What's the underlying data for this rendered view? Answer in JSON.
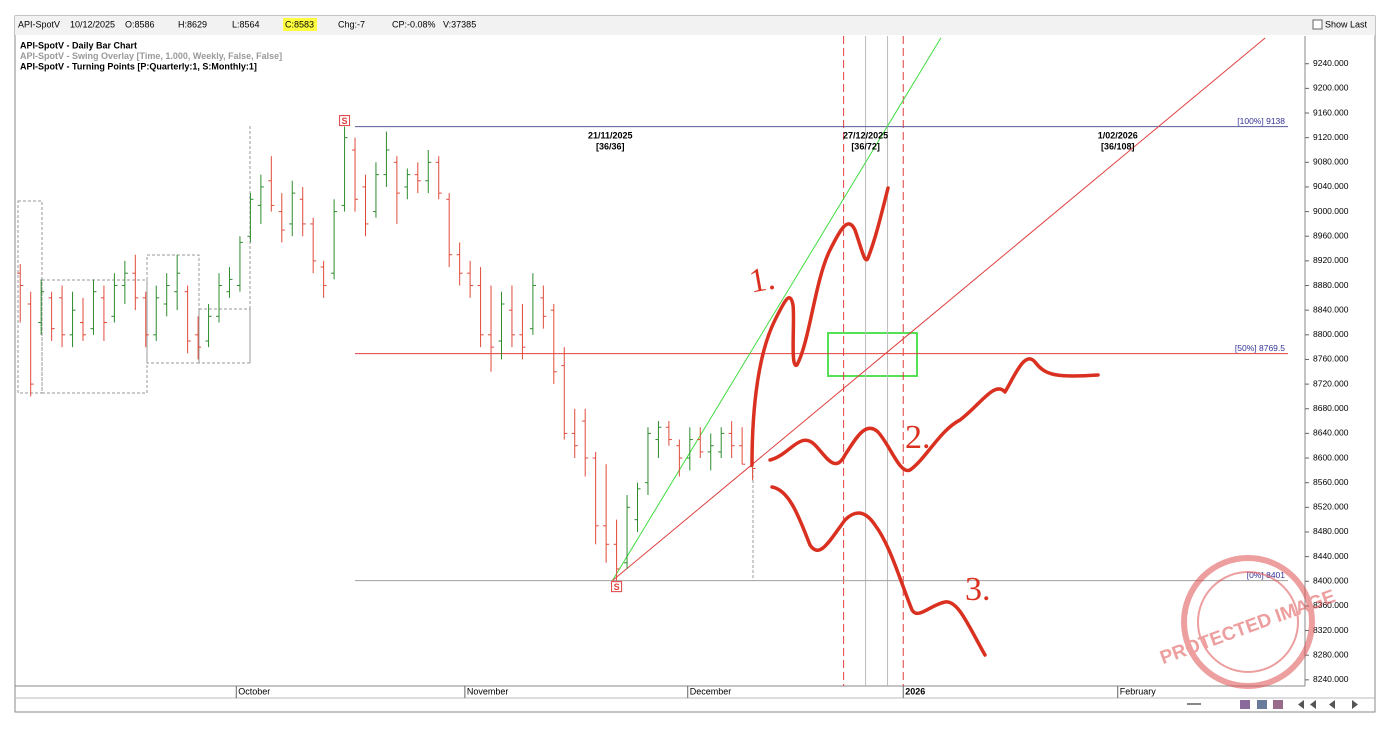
{
  "header": {
    "symbol": "API-SpotV",
    "date": "10/12/2025",
    "open": "O:8586",
    "high": "H:8629",
    "low": "L:8564",
    "close": "C:8583",
    "change": "Chg:-7",
    "cp": "CP:-0.08%",
    "volume": "V:37385",
    "show_last": "Show Last"
  },
  "chart_data": {
    "type": "ohlc",
    "legend": [
      "API-SpotV - Daily Bar Chart",
      "API-SpotV - Swing Overlay [Time, 1.000, Weekly, False, False]",
      "API-SpotV - Turning Points [P:Quarterly:1, S:Monthly:1]"
    ],
    "up_color": "#2e8b2e",
    "down_color": "#e04a3a",
    "open": [
      8900,
      8850,
      8820,
      8860,
      8860,
      8800,
      8820,
      8810,
      8860,
      8830,
      8880,
      8900,
      8860,
      8800,
      8850,
      8870,
      8870,
      8800,
      8790,
      8830,
      8870,
      8880,
      8960,
      9010,
      9050,
      9000,
      8980,
      9020,
      8980,
      8910,
      8900,
      9010,
      9100,
      9040,
      9000,
      9060,
      9080,
      9040,
      9060,
      9050,
      9080,
      9020,
      8930,
      8900,
      8880,
      8800,
      8790,
      8840,
      8800,
      8810,
      8860,
      8840,
      8750,
      8640,
      8660,
      8600,
      8490,
      8460,
      8430,
      8500,
      8560,
      8630,
      8650,
      8620,
      8600,
      8630,
      8610,
      8610,
      8640,
      8620,
      8586
    ],
    "high": [
      8915,
      8870,
      8890,
      8870,
      8880,
      8870,
      8860,
      8890,
      8880,
      8900,
      8920,
      8930,
      8870,
      8880,
      8900,
      8930,
      8880,
      8830,
      8850,
      8900,
      8910,
      8960,
      9030,
      9060,
      9090,
      9030,
      9050,
      9040,
      8990,
      8920,
      9020,
      9138,
      9120,
      9060,
      9080,
      9130,
      9090,
      9070,
      9080,
      9100,
      9090,
      9030,
      8950,
      8920,
      8910,
      8880,
      8870,
      8880,
      8850,
      8900,
      8880,
      8850,
      8780,
      8680,
      8680,
      8610,
      8590,
      8500,
      8540,
      8560,
      8650,
      8660,
      8660,
      8630,
      8650,
      8650,
      8640,
      8650,
      8660,
      8650,
      8629
    ],
    "low": [
      8820,
      8700,
      8800,
      8790,
      8780,
      8780,
      8790,
      8800,
      8790,
      8820,
      8850,
      8840,
      8780,
      8790,
      8830,
      8840,
      8770,
      8760,
      8780,
      8820,
      8860,
      8870,
      8950,
      8980,
      9000,
      8950,
      8960,
      8960,
      8900,
      8860,
      8890,
      9000,
      9000,
      8960,
      8990,
      9040,
      8980,
      9020,
      9030,
      9030,
      9020,
      8910,
      8880,
      8860,
      8780,
      8740,
      8760,
      8780,
      8760,
      8800,
      8810,
      8720,
      8630,
      8600,
      8570,
      8460,
      8430,
      8401,
      8420,
      8480,
      8540,
      8600,
      8620,
      8570,
      8580,
      8600,
      8580,
      8600,
      8600,
      8590,
      8564
    ],
    "close": [
      8880,
      8720,
      8870,
      8810,
      8800,
      8840,
      8800,
      8870,
      8820,
      8880,
      8900,
      8860,
      8800,
      8860,
      8880,
      8900,
      8790,
      8780,
      8830,
      8880,
      8890,
      8950,
      9020,
      9040,
      9010,
      8970,
      9030,
      8980,
      8920,
      8880,
      9000,
      9120,
      9020,
      8980,
      9060,
      9100,
      9030,
      9060,
      9050,
      9080,
      9030,
      8930,
      8900,
      8880,
      8800,
      8780,
      8850,
      8800,
      8780,
      8880,
      8830,
      8740,
      8640,
      8620,
      8600,
      8490,
      8460,
      8420,
      8520,
      8550,
      8640,
      8650,
      8630,
      8600,
      8630,
      8610,
      8620,
      8640,
      8620,
      8590,
      8583
    ],
    "xlim": [
      -0.5,
      122.8
    ],
    "ylim": [
      8230,
      9285
    ],
    "xticks": [
      {
        "value": 20.65,
        "label": "October"
      },
      {
        "value": 42.5,
        "label": "November"
      },
      {
        "value": 63.8,
        "label": "December"
      },
      {
        "value": 84.4,
        "label": "2026"
      },
      {
        "value": 104.9,
        "label": "February"
      }
    ],
    "yticks": [
      {
        "value": 8240,
        "label": "8240.000"
      },
      {
        "value": 8280,
        "label": "8280.000"
      },
      {
        "value": 8320,
        "label": "8320.000"
      },
      {
        "value": 8360,
        "label": "8360.000"
      },
      {
        "value": 8400,
        "label": "8400.000"
      },
      {
        "value": 8440,
        "label": "8440.000"
      },
      {
        "value": 8480,
        "label": "8480.000"
      },
      {
        "value": 8520,
        "label": "8520.000"
      },
      {
        "value": 8560,
        "label": "8560.000"
      },
      {
        "value": 8600,
        "label": "8600.000"
      },
      {
        "value": 8640,
        "label": "8640.000"
      },
      {
        "value": 8680,
        "label": "8680.000"
      },
      {
        "value": 8720,
        "label": "8720.000"
      },
      {
        "value": 8760,
        "label": "8760.000"
      },
      {
        "value": 8800,
        "label": "8800.000"
      },
      {
        "value": 8840,
        "label": "8840.000"
      },
      {
        "value": 8880,
        "label": "8880.000"
      },
      {
        "value": 8920,
        "label": "8920.000"
      },
      {
        "value": 8960,
        "label": "8960.000"
      },
      {
        "value": 9000,
        "label": "9000.000"
      },
      {
        "value": 9040,
        "label": "9040.000"
      },
      {
        "value": 9080,
        "label": "9080.000"
      },
      {
        "value": 9120,
        "label": "9120.000"
      },
      {
        "value": 9160,
        "label": "9160.000"
      },
      {
        "value": 9200,
        "label": "9200.000"
      },
      {
        "value": 9240,
        "label": "9240.000"
      }
    ],
    "levels": [
      {
        "value": 9138,
        "label": "[100%] 9138",
        "color": "#5a5a9a"
      },
      {
        "value": 8769.5,
        "label": "[50%] 8769.5",
        "color": "#e04040"
      },
      {
        "value": 8401,
        "label": "[0%] 8401",
        "color": "#a0a0a0"
      }
    ],
    "level_start": 32,
    "trend_lines": [
      {
        "color": "#40dd40",
        "x": [
          56.6,
          88.0
        ],
        "y": [
          8401,
          9282
        ]
      },
      {
        "color": "#e04040",
        "x": [
          56.6,
          119.0
        ],
        "y": [
          8401,
          9282
        ]
      }
    ],
    "time_lines": [
      {
        "x": 78.7,
        "color": "#e04040",
        "dashed": true
      },
      {
        "x": 80.8,
        "color": "#bbbbbb",
        "dashed": false
      },
      {
        "x": 82.9,
        "color": "#bbbbbb",
        "dashed": false
      },
      {
        "x": 84.4,
        "color": "#e04040",
        "dashed": true
      }
    ],
    "time_labels": [
      {
        "x": 56.4,
        "date": "21/11/2025",
        "count": "[36/36]"
      },
      {
        "x": 80.8,
        "date": "27/12/2025",
        "count": "[36/72]"
      },
      {
        "x": 104.9,
        "date": "1/02/2026",
        "count": "[36/108]"
      }
    ],
    "swing_points": [
      {
        "x": 31,
        "value": 9138,
        "label": "S"
      },
      {
        "x": 57,
        "value": 8401,
        "label": "S"
      }
    ],
    "scenario_labels": [
      "1.",
      "2.",
      "3."
    ],
    "watermark": "PROTECTED IMAGE"
  }
}
